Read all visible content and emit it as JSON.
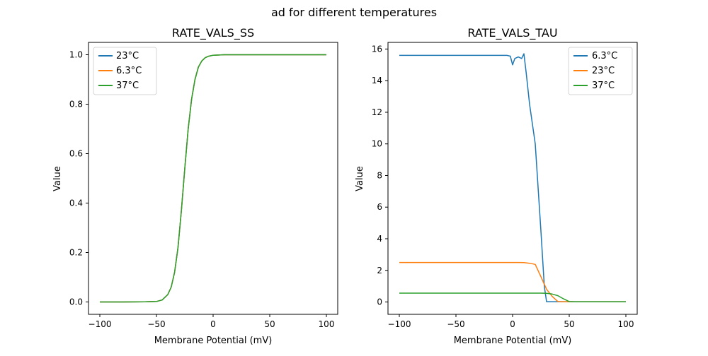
{
  "figure": {
    "suptitle": "ad for different temperatures"
  },
  "chart_data": [
    {
      "type": "line",
      "title": "RATE_VALS_SS",
      "xlabel": "Membrane Potential (mV)",
      "ylabel": "Value",
      "xlim": [
        -110,
        110
      ],
      "ylim": [
        -0.05,
        1.05
      ],
      "xticks": [
        -100,
        -50,
        0,
        50,
        100
      ],
      "yticks": [
        0.0,
        0.2,
        0.4,
        0.6,
        0.8,
        1.0
      ],
      "xtick_labels": [
        "−100",
        "−50",
        "0",
        "50",
        "100"
      ],
      "ytick_labels": [
        "0.0",
        "0.2",
        "0.4",
        "0.6",
        "0.8",
        "1.0"
      ],
      "legend": "top-left",
      "grid": false,
      "x": [
        -100,
        -80,
        -60,
        -50,
        -45,
        -40,
        -37,
        -34,
        -31,
        -28,
        -25,
        -22,
        -19,
        -16,
        -13,
        -10,
        -7,
        -4,
        0,
        5,
        10,
        20,
        40,
        60,
        80,
        100
      ],
      "series": [
        {
          "name": "23°C",
          "color": "#1f77b4",
          "values": [
            0,
            0,
            0.0005,
            0.002,
            0.008,
            0.03,
            0.06,
            0.12,
            0.22,
            0.37,
            0.54,
            0.7,
            0.82,
            0.9,
            0.95,
            0.975,
            0.988,
            0.994,
            0.998,
            0.999,
            1,
            1,
            1,
            1,
            1,
            1
          ]
        },
        {
          "name": "6.3°C",
          "color": "#ff7f0e",
          "values": [
            0,
            0,
            0.0005,
            0.002,
            0.008,
            0.03,
            0.06,
            0.12,
            0.22,
            0.37,
            0.54,
            0.7,
            0.82,
            0.9,
            0.95,
            0.975,
            0.988,
            0.994,
            0.998,
            0.999,
            1,
            1,
            1,
            1,
            1,
            1
          ]
        },
        {
          "name": "37°C",
          "color": "#2ca02c",
          "values": [
            0,
            0,
            0.0005,
            0.002,
            0.008,
            0.03,
            0.06,
            0.12,
            0.22,
            0.37,
            0.54,
            0.7,
            0.82,
            0.9,
            0.95,
            0.975,
            0.988,
            0.994,
            0.998,
            0.999,
            1,
            1,
            1,
            1,
            1,
            1
          ]
        }
      ]
    },
    {
      "type": "line",
      "title": "RATE_VALS_TAU",
      "xlabel": "Membrane Potential (mV)",
      "ylabel": "Value",
      "xlim": [
        -110,
        110
      ],
      "ylim": [
        -0.78,
        16.42
      ],
      "xticks": [
        -100,
        -50,
        0,
        50,
        100
      ],
      "yticks": [
        0,
        2,
        4,
        6,
        8,
        10,
        12,
        14,
        16
      ],
      "xtick_labels": [
        "−100",
        "−50",
        "0",
        "50",
        "100"
      ],
      "ytick_labels": [
        "0",
        "2",
        "4",
        "6",
        "8",
        "10",
        "12",
        "14",
        "16"
      ],
      "legend": "top-right",
      "grid": false,
      "series": [
        {
          "name": "6.3°C",
          "color": "#1f77b4",
          "x": [
            -100,
            -10,
            -5,
            -2,
            0,
            2,
            5,
            8,
            10,
            12,
            15,
            20,
            25,
            28,
            30,
            40,
            50,
            100
          ],
          "y": [
            15.6,
            15.6,
            15.6,
            15.55,
            15.0,
            15.4,
            15.5,
            15.4,
            15.7,
            14.5,
            12.5,
            10.0,
            4.5,
            1.0,
            0.02,
            0.02,
            0.02,
            0.02
          ]
        },
        {
          "name": "23°C",
          "color": "#ff7f0e",
          "x": [
            -100,
            0,
            5,
            10,
            15,
            20,
            25,
            30,
            35,
            40,
            45,
            50,
            100
          ],
          "y": [
            2.5,
            2.5,
            2.5,
            2.49,
            2.45,
            2.38,
            1.6,
            0.8,
            0.35,
            0.03,
            0.02,
            0.02,
            0.02
          ]
        },
        {
          "name": "37°C",
          "color": "#2ca02c",
          "x": [
            -100,
            20,
            25,
            30,
            35,
            40,
            45,
            50,
            55,
            100
          ],
          "y": [
            0.56,
            0.56,
            0.56,
            0.55,
            0.5,
            0.4,
            0.2,
            0.03,
            0.01,
            0.01
          ]
        }
      ]
    }
  ]
}
